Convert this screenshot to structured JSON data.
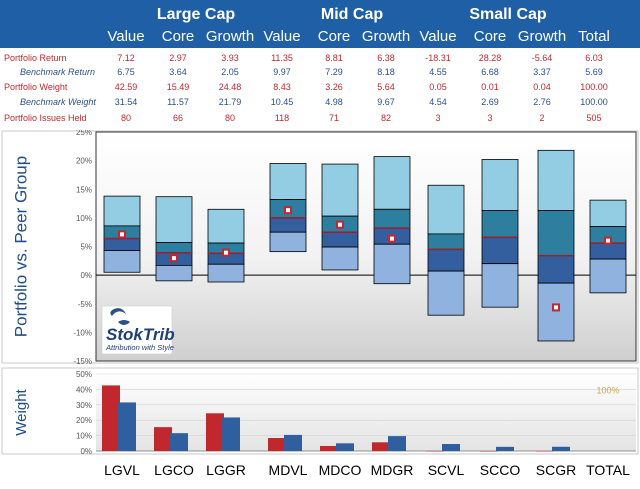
{
  "header": {
    "groups": [
      "Large Cap",
      "Mid Cap",
      "Small Cap"
    ],
    "columns": [
      "Value",
      "Core",
      "Growth",
      "Value",
      "Core",
      "Growth",
      "Value",
      "Core",
      "Growth",
      "Total"
    ]
  },
  "table": {
    "rows": [
      {
        "label": "Portfolio Return",
        "kind": "pf",
        "values": [
          "7.12",
          "2.97",
          "3.93",
          "11.35",
          "8.81",
          "6.38",
          "-18.31",
          "28.28",
          "-5.64",
          "6.03"
        ]
      },
      {
        "label": "Benchmark Return",
        "kind": "bm",
        "values": [
          "6.75",
          "3.64",
          "2.05",
          "9.97",
          "7.29",
          "8.18",
          "4.55",
          "6.68",
          "3.37",
          "5.69"
        ]
      },
      {
        "label": "Portfolio Weight",
        "kind": "pf",
        "values": [
          "42.59",
          "15.49",
          "24.48",
          "8.43",
          "3.26",
          "5.64",
          "0.05",
          "0.01",
          "0.04",
          "100.00"
        ]
      },
      {
        "label": "Benchmark Weight",
        "kind": "bm",
        "values": [
          "31.54",
          "11.57",
          "21.79",
          "10.45",
          "4.98",
          "9.67",
          "4.54",
          "2.69",
          "2.76",
          "100.00"
        ]
      },
      {
        "label": "Portfolio Issues Held",
        "kind": "pf",
        "values": [
          "80",
          "66",
          "80",
          "118",
          "71",
          "82",
          "3",
          "3",
          "2",
          "505"
        ]
      }
    ]
  },
  "chart_data": [
    {
      "type": "box",
      "ylabel": "Portfolio vs. Peer Group",
      "ylim": [
        -15,
        25
      ],
      "yticks": [
        "25%",
        "20%",
        "15%",
        "10%",
        "5%",
        "0%",
        "-5%",
        "-10%",
        "-15%"
      ],
      "categories": [
        "LGVL",
        "LGCO",
        "LGGR",
        "MDVL",
        "MDCO",
        "MDGR",
        "SCVL",
        "SCCO",
        "SCGR",
        "TOTAL"
      ],
      "bands": [
        {
          "min": 0.5,
          "q1": 4.3,
          "med": 6.4,
          "q3": 8.6,
          "max": 13.8
        },
        {
          "min": -1.0,
          "q1": 1.7,
          "med": 3.9,
          "q3": 5.7,
          "max": 13.7
        },
        {
          "min": -1.2,
          "q1": 1.9,
          "med": 3.8,
          "q3": 5.6,
          "max": 11.5
        },
        {
          "min": 4.1,
          "q1": 7.5,
          "med": 10.0,
          "q3": 13.2,
          "max": 19.5
        },
        {
          "min": 0.9,
          "q1": 4.9,
          "med": 7.5,
          "q3": 10.3,
          "max": 19.4
        },
        {
          "min": -1.5,
          "q1": 5.4,
          "med": 8.2,
          "q3": 11.5,
          "max": 20.7
        },
        {
          "min": -7.0,
          "q1": 0.7,
          "med": 4.5,
          "q3": 7.2,
          "max": 15.7
        },
        {
          "min": -5.6,
          "q1": 2.0,
          "med": 6.6,
          "q3": 11.3,
          "max": 20.2
        },
        {
          "min": -11.5,
          "q1": -1.4,
          "med": 3.4,
          "q3": 11.3,
          "max": 21.8
        },
        {
          "min": -3.1,
          "q1": 2.8,
          "med": 5.6,
          "q3": 8.5,
          "max": 13.1
        }
      ],
      "portfolio_return": [
        7.12,
        2.97,
        3.93,
        11.35,
        8.81,
        6.38,
        -18.31,
        28.28,
        -5.64,
        6.03
      ],
      "logo": {
        "name": "StokTrib",
        "tagline": "Attribution with Style"
      },
      "colors": {
        "outer": "#93cde4",
        "upper_mid": "#2e7f9f",
        "lower_mid": "#335f9e",
        "lower": "#8fb2de",
        "marker_fill": "#ffffff",
        "marker_border": "#c0282d",
        "background_top": "#ffffff",
        "background_bottom": "#d9d9d9"
      }
    },
    {
      "type": "bar",
      "ylabel": "Weight",
      "ylim": [
        0,
        50
      ],
      "yticks": [
        "50%",
        "40%",
        "30%",
        "20%",
        "10%",
        "0%"
      ],
      "categories": [
        "LGVL",
        "LGCO",
        "LGGR",
        "MDVL",
        "MDCO",
        "MDGR",
        "SCVL",
        "SCCO",
        "SCGR",
        "TOTAL"
      ],
      "series": [
        {
          "name": "Portfolio Weight",
          "color": "#c0282d",
          "values": [
            42.59,
            15.49,
            24.48,
            8.43,
            3.26,
            5.64,
            0.05,
            0.01,
            0.04,
            null
          ]
        },
        {
          "name": "Benchmark Weight",
          "color": "#2f5f9f",
          "values": [
            31.54,
            11.57,
            21.79,
            10.45,
            4.98,
            9.67,
            4.54,
            2.69,
            2.76,
            null
          ]
        }
      ],
      "total_annotation": "100%"
    }
  ]
}
